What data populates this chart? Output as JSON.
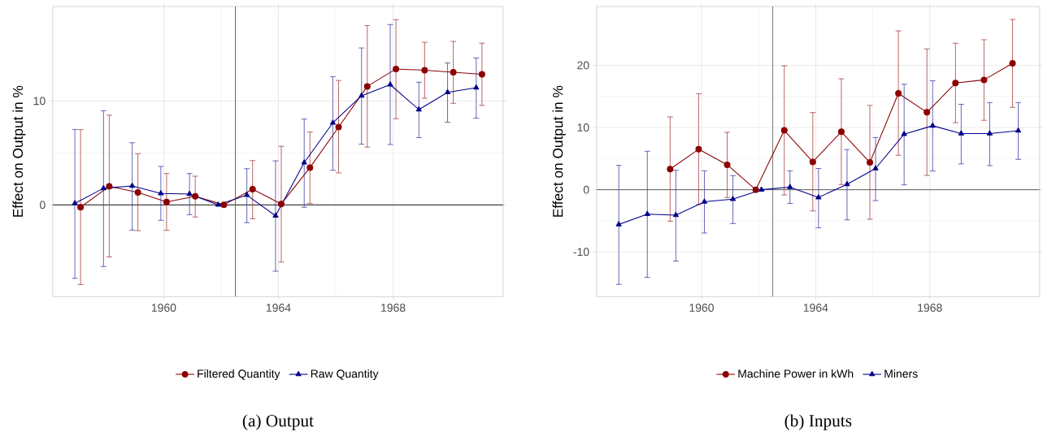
{
  "chart_data": [
    {
      "type": "line",
      "ylabel": "Effect on Output in %",
      "annotations": [
        "(a) Output"
      ],
      "xlim": [
        1956.13,
        1971.84
      ],
      "ylim": [
        -8.83,
        19.09
      ],
      "xticks": [
        1960,
        1964,
        1968
      ],
      "yticks": [
        0,
        10
      ],
      "grid": true,
      "legend": "bottom",
      "ref_lines": [
        {
          "axis": "y",
          "value": 0,
          "color": "#000000"
        },
        {
          "axis": "x",
          "value": 1962.5,
          "color": "#555555"
        }
      ],
      "series": [
        {
          "name": "Filtered Quantity",
          "color": "#8b0000",
          "marker": "circle",
          "x": [
            1957.1,
            1958.1,
            1959.1,
            1960.1,
            1961.1,
            1962.1,
            1963.1,
            1964.1,
            1965.1,
            1966.1,
            1967.1,
            1968.1,
            1969.1,
            1970.1,
            1971.1
          ],
          "values": [
            -0.23,
            1.79,
            1.2,
            0.28,
            0.83,
            0,
            1.51,
            0.09,
            3.59,
            7.49,
            11.4,
            13.08,
            12.96,
            12.76,
            12.56
          ],
          "errors": [
            [
              -7.66,
              7.24
            ],
            [
              -5.01,
              8.63
            ],
            [
              -2.48,
              4.93
            ],
            [
              -2.45,
              3.02
            ],
            [
              -1.17,
              2.76
            ],
            null,
            [
              -1.34,
              4.27
            ],
            [
              -5.5,
              5.64
            ],
            [
              0.14,
              7.01
            ],
            [
              3.08,
              11.97
            ],
            [
              5.56,
              17.26
            ],
            [
              8.29,
              17.83
            ],
            [
              10.26,
              15.64
            ],
            [
              9.77,
              15.73
            ],
            [
              9.57,
              15.56
            ]
          ]
        },
        {
          "name": "Raw Quantity",
          "color": "#00008b",
          "marker": "triangle",
          "x": [
            1956.9,
            1957.9,
            1958.9,
            1959.9,
            1960.9,
            1961.9,
            1962.9,
            1963.9,
            1964.9,
            1965.9,
            1966.9,
            1967.9,
            1968.9,
            1969.9,
            1970.9
          ],
          "values": [
            0.14,
            1.6,
            1.82,
            1.1,
            1.05,
            0,
            0.94,
            -1.05,
            4.07,
            7.9,
            10.5,
            11.57,
            9.17,
            10.83,
            11.28
          ],
          "errors": [
            [
              -7.07,
              7.26
            ],
            [
              -5.93,
              9.06
            ],
            [
              -2.42,
              5.98
            ],
            [
              -1.48,
              3.7
            ],
            [
              -0.94,
              3.02
            ],
            null,
            [
              -1.71,
              3.48
            ],
            [
              -6.38,
              4.24
            ],
            [
              -0.23,
              8.26
            ],
            [
              3.33,
              12.34
            ],
            [
              5.84,
              15.1
            ],
            [
              5.81,
              17.35
            ],
            [
              6.47,
              11.8
            ],
            [
              7.95,
              13.65
            ],
            [
              8.35,
              14.13
            ]
          ]
        }
      ]
    },
    {
      "type": "line",
      "ylabel": "Effect on Output in %",
      "annotations": [
        "(b) Inputs"
      ],
      "xlim": [
        1956.32,
        1971.85
      ],
      "ylim": [
        -17.19,
        29.45
      ],
      "xticks": [
        1960,
        1964,
        1968
      ],
      "yticks": [
        -10,
        0,
        10,
        20
      ],
      "grid": true,
      "legend": "bottom",
      "ref_lines": [
        {
          "axis": "y",
          "value": 0,
          "color": "#555555"
        },
        {
          "axis": "x",
          "value": 1962.5,
          "color": "#555555"
        }
      ],
      "series": [
        {
          "name": "Machine Power in kWh",
          "color": "#8b0000",
          "marker": "circle",
          "x": [
            1958.9,
            1959.9,
            1960.9,
            1961.9,
            1962.9,
            1963.9,
            1964.9,
            1965.9,
            1966.9,
            1967.9,
            1968.9,
            1969.9,
            1970.9
          ],
          "values": [
            3.32,
            6.5,
            4.01,
            0,
            9.54,
            4.47,
            9.31,
            4.38,
            15.48,
            12.44,
            17.14,
            17.65,
            20.32
          ],
          "errors": [
            [
              -5.07,
              11.71
            ],
            [
              -2.4,
              15.44
            ],
            [
              -1.24,
              9.22
            ],
            null,
            [
              -0.83,
              19.91
            ],
            [
              -3.41,
              12.4
            ],
            [
              0.83,
              17.83
            ],
            [
              -4.75,
              13.55
            ],
            [
              5.53,
              25.53
            ],
            [
              2.3,
              22.63
            ],
            [
              10.78,
              23.55
            ],
            [
              11.15,
              24.1
            ],
            [
              13.23,
              27.37
            ]
          ]
        },
        {
          "name": "Miners",
          "color": "#00008b",
          "marker": "triangle",
          "x": [
            1957.1,
            1958.1,
            1959.1,
            1960.1,
            1961.1,
            1962.1,
            1963.1,
            1964.1,
            1965.1,
            1966.1,
            1967.1,
            1968.1,
            1969.1,
            1970.1,
            1971.1
          ],
          "values": [
            -5.58,
            -3.92,
            -4.1,
            -1.94,
            -1.52,
            0,
            0.41,
            -1.24,
            0.88,
            3.41,
            8.94,
            10.28,
            9.03,
            9.03,
            9.49
          ],
          "errors": [
            [
              -15.21,
              3.92
            ],
            [
              -14.1,
              6.18
            ],
            [
              -11.47,
              3.13
            ],
            [
              -6.96,
              3.04
            ],
            [
              -5.44,
              2.26
            ],
            null,
            [
              -2.21,
              3.04
            ],
            [
              -6.13,
              3.41
            ],
            [
              -4.84,
              6.45
            ],
            [
              -1.75,
              8.39
            ],
            [
              0.78,
              16.96
            ],
            [
              3.0,
              17.51
            ],
            [
              4.15,
              13.73
            ],
            [
              3.87,
              14.01
            ],
            [
              4.88,
              14.01
            ]
          ]
        }
      ]
    }
  ]
}
